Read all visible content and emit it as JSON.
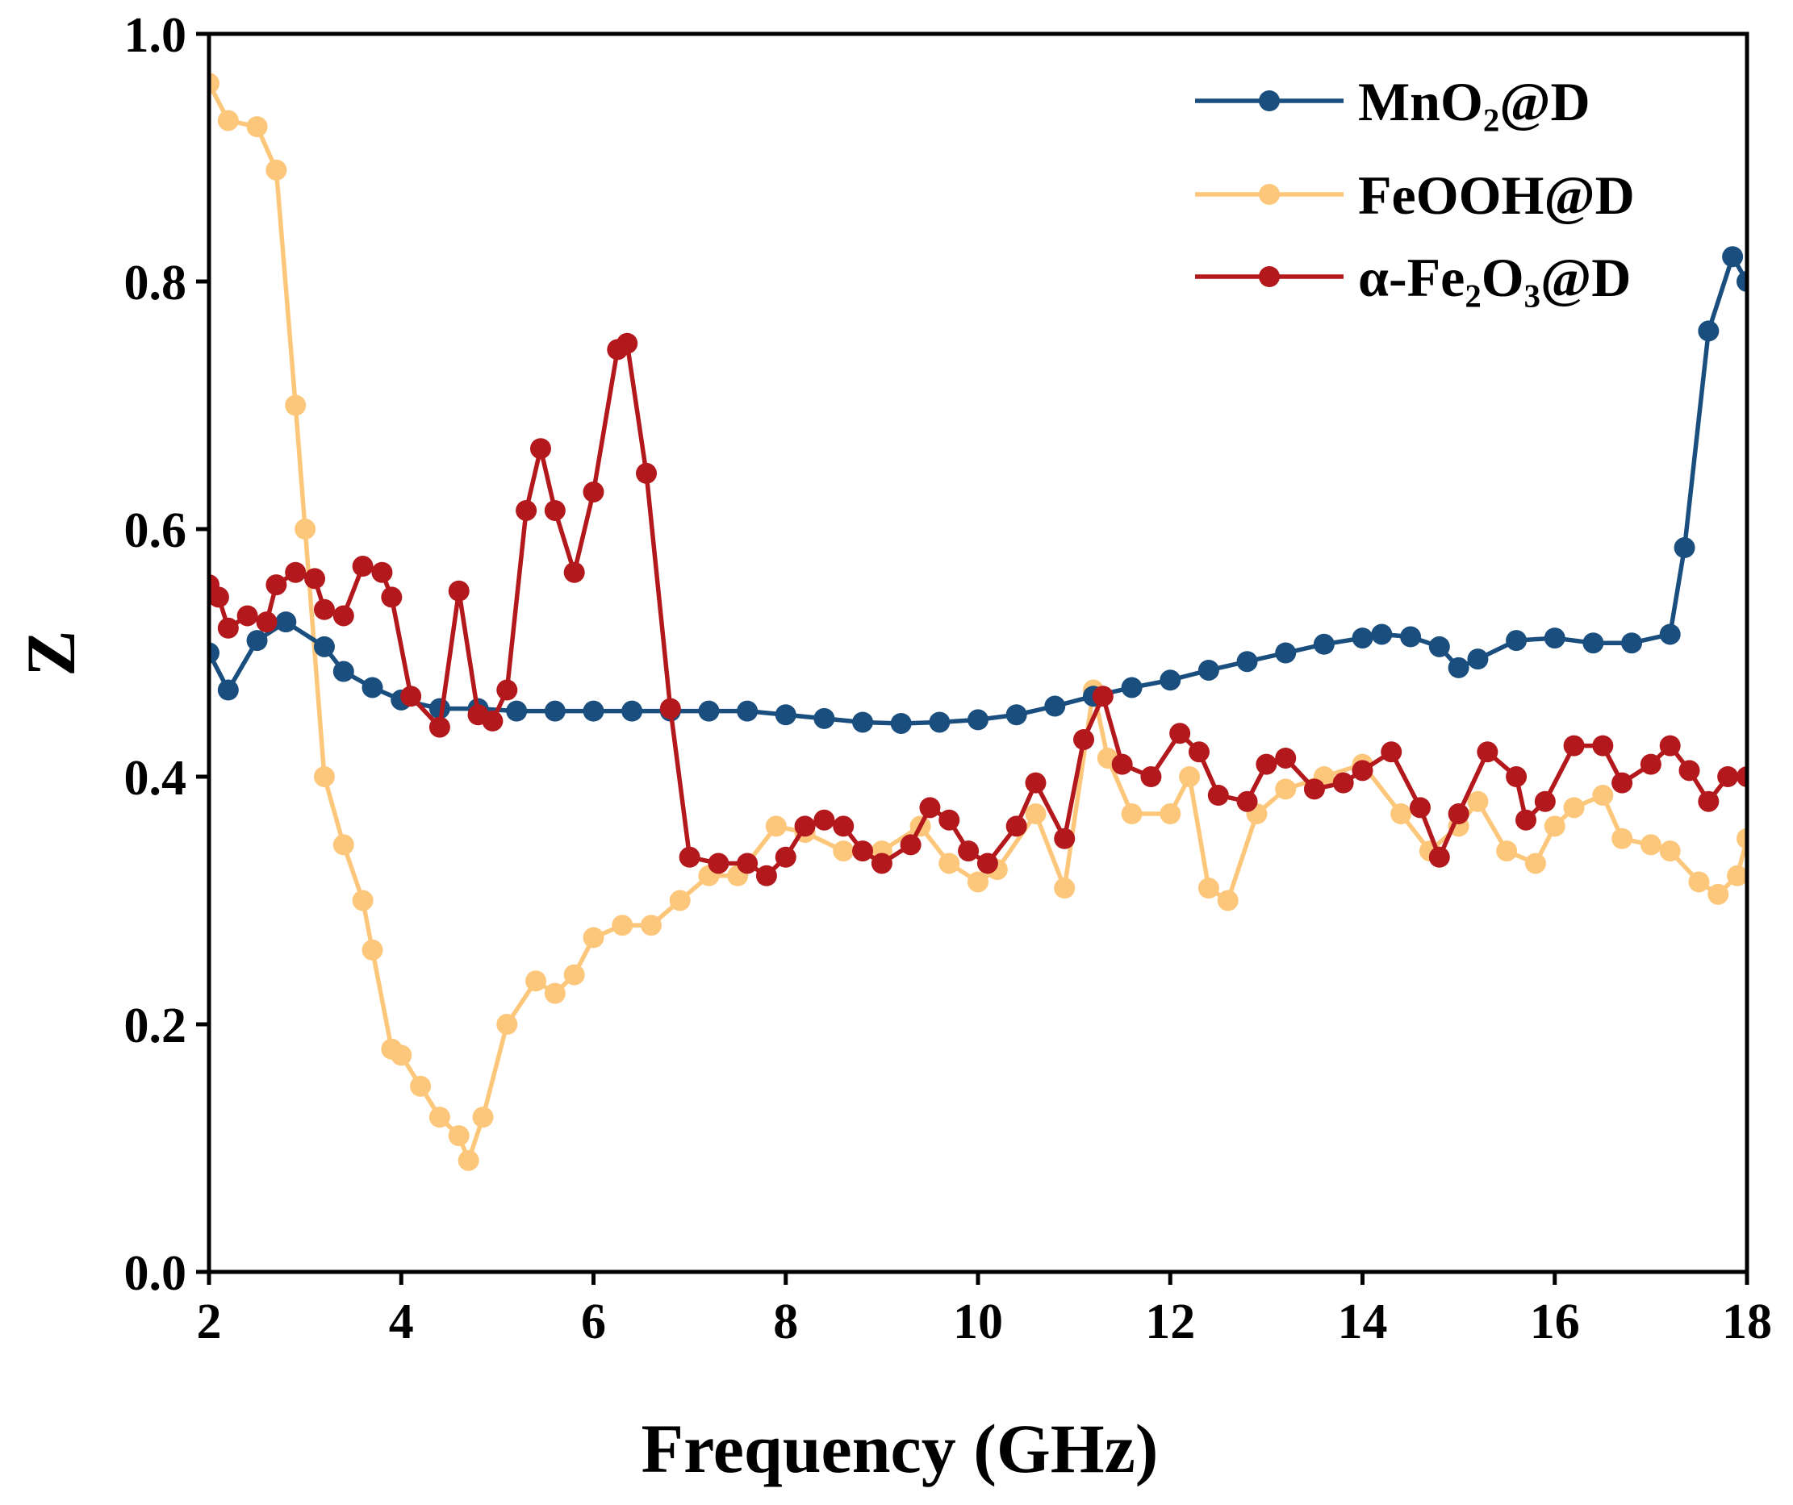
{
  "chart_data": {
    "type": "line",
    "xlabel": "Frequency (GHz)",
    "ylabel": "Z",
    "xlim": [
      2,
      18
    ],
    "ylim": [
      0,
      1
    ],
    "xticks": [
      2,
      4,
      6,
      8,
      10,
      12,
      14,
      16,
      18
    ],
    "yticks": [
      {
        "value": 0,
        "label": "0.0"
      },
      0.2,
      0.4,
      0.6,
      0.8,
      {
        "value": 1,
        "label": "1.0"
      }
    ],
    "legend": "upper right",
    "series": [
      {
        "name": "MnO₂@D",
        "color": "#1a4e7e",
        "x": [
          2.0,
          2.2,
          2.5,
          2.8,
          3.2,
          3.4,
          3.7,
          4.0,
          4.4,
          4.8,
          5.2,
          5.6,
          6.0,
          6.4,
          6.8,
          7.2,
          7.6,
          8.0,
          8.4,
          8.8,
          9.2,
          9.6,
          10.0,
          10.4,
          10.8,
          11.2,
          11.6,
          12.0,
          12.4,
          12.8,
          13.2,
          13.6,
          14.0,
          14.2,
          14.5,
          14.8,
          15.0,
          15.2,
          15.6,
          16.0,
          16.4,
          16.8,
          17.2,
          17.35,
          17.6,
          17.85,
          18.0
        ],
        "values": [
          0.5,
          0.47,
          0.51,
          0.525,
          0.505,
          0.485,
          0.472,
          0.462,
          0.455,
          0.455,
          0.453,
          0.453,
          0.453,
          0.453,
          0.453,
          0.453,
          0.453,
          0.45,
          0.447,
          0.444,
          0.443,
          0.444,
          0.446,
          0.45,
          0.457,
          0.465,
          0.472,
          0.478,
          0.486,
          0.493,
          0.5,
          0.507,
          0.512,
          0.515,
          0.513,
          0.505,
          0.488,
          0.495,
          0.51,
          0.512,
          0.508,
          0.508,
          0.515,
          0.585,
          0.76,
          0.82,
          0.8
        ]
      },
      {
        "name": "FeOOH@D",
        "color": "#fdc77b",
        "x": [
          2.0,
          2.2,
          2.5,
          2.7,
          2.9,
          3.0,
          3.2,
          3.4,
          3.6,
          3.7,
          3.9,
          4.0,
          4.2,
          4.4,
          4.6,
          4.7,
          4.85,
          5.1,
          5.4,
          5.6,
          5.8,
          6.0,
          6.3,
          6.6,
          6.9,
          7.2,
          7.5,
          7.9,
          8.2,
          8.6,
          9.0,
          9.4,
          9.7,
          10.0,
          10.2,
          10.6,
          10.9,
          11.2,
          11.35,
          11.6,
          12.0,
          12.2,
          12.4,
          12.6,
          12.9,
          13.2,
          13.6,
          14.0,
          14.4,
          14.7,
          15.0,
          15.2,
          15.5,
          15.8,
          16.0,
          16.2,
          16.5,
          16.7,
          17.0,
          17.2,
          17.5,
          17.7,
          17.9,
          18.0
        ],
        "values": [
          0.96,
          0.93,
          0.925,
          0.89,
          0.7,
          0.6,
          0.4,
          0.345,
          0.3,
          0.26,
          0.18,
          0.175,
          0.15,
          0.125,
          0.11,
          0.09,
          0.125,
          0.2,
          0.235,
          0.225,
          0.24,
          0.27,
          0.28,
          0.28,
          0.3,
          0.32,
          0.32,
          0.36,
          0.355,
          0.34,
          0.34,
          0.36,
          0.33,
          0.315,
          0.325,
          0.37,
          0.31,
          0.47,
          0.415,
          0.37,
          0.37,
          0.4,
          0.31,
          0.3,
          0.37,
          0.39,
          0.4,
          0.41,
          0.37,
          0.34,
          0.36,
          0.38,
          0.34,
          0.33,
          0.36,
          0.375,
          0.385,
          0.35,
          0.345,
          0.34,
          0.315,
          0.305,
          0.32,
          0.35
        ]
      },
      {
        "name": "α-Fe₂O₃@D",
        "color": "#b3191c",
        "x": [
          2.0,
          2.1,
          2.2,
          2.4,
          2.6,
          2.7,
          2.9,
          3.1,
          3.2,
          3.4,
          3.6,
          3.8,
          3.9,
          4.1,
          4.4,
          4.6,
          4.8,
          4.95,
          5.1,
          5.3,
          5.45,
          5.6,
          5.8,
          6.0,
          6.25,
          6.35,
          6.55,
          6.8,
          7.0,
          7.3,
          7.6,
          7.8,
          8.0,
          8.2,
          8.4,
          8.6,
          8.8,
          9.0,
          9.3,
          9.5,
          9.7,
          9.9,
          10.1,
          10.4,
          10.6,
          10.9,
          11.1,
          11.3,
          11.5,
          11.8,
          12.1,
          12.3,
          12.5,
          12.8,
          13.0,
          13.2,
          13.5,
          13.8,
          14.0,
          14.3,
          14.6,
          14.8,
          15.0,
          15.3,
          15.6,
          15.7,
          15.9,
          16.2,
          16.5,
          16.7,
          17.0,
          17.2,
          17.4,
          17.6,
          17.8,
          18.0
        ],
        "values": [
          0.555,
          0.545,
          0.52,
          0.53,
          0.525,
          0.555,
          0.565,
          0.56,
          0.535,
          0.53,
          0.57,
          0.565,
          0.545,
          0.465,
          0.44,
          0.55,
          0.45,
          0.445,
          0.47,
          0.615,
          0.665,
          0.615,
          0.565,
          0.63,
          0.745,
          0.75,
          0.645,
          0.455,
          0.335,
          0.33,
          0.33,
          0.32,
          0.335,
          0.36,
          0.365,
          0.36,
          0.34,
          0.33,
          0.345,
          0.375,
          0.365,
          0.34,
          0.33,
          0.36,
          0.395,
          0.35,
          0.43,
          0.465,
          0.41,
          0.4,
          0.435,
          0.42,
          0.385,
          0.38,
          0.41,
          0.415,
          0.39,
          0.395,
          0.405,
          0.42,
          0.375,
          0.335,
          0.37,
          0.42,
          0.4,
          0.365,
          0.38,
          0.425,
          0.425,
          0.395,
          0.41,
          0.425,
          0.405,
          0.38,
          0.4,
          0.4
        ]
      }
    ]
  }
}
